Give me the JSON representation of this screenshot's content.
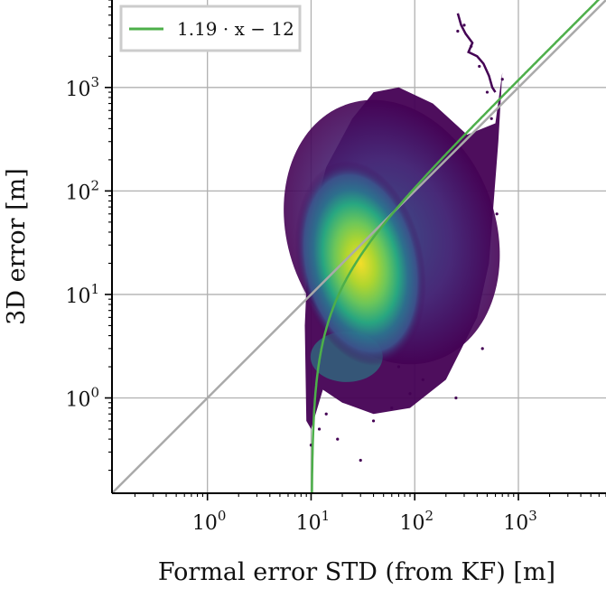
{
  "chart_data": {
    "type": "scatter",
    "xlabel": "Formal error STD (from KF) [m]",
    "ylabel": "3D error [m]",
    "xscale": "log",
    "yscale": "log",
    "xlim": [
      0.12,
      7000
    ],
    "ylim": [
      0.12,
      7000
    ],
    "grid": true,
    "legend_position": "top-left",
    "x_ticks": [
      {
        "base": "10",
        "exp": "0"
      },
      {
        "base": "10",
        "exp": "1"
      },
      {
        "base": "10",
        "exp": "2"
      },
      {
        "base": "10",
        "exp": "3"
      }
    ],
    "y_ticks": [
      {
        "base": "10",
        "exp": "0"
      },
      {
        "base": "10",
        "exp": "1"
      },
      {
        "base": "10",
        "exp": "2"
      },
      {
        "base": "10",
        "exp": "3"
      }
    ],
    "colormap": "viridis",
    "colors": {
      "fit_line": "#4daf4a",
      "identity_line": "#aaaaaa",
      "density_low": "#440154",
      "density_mid": "#21918c",
      "density_high": "#fde725"
    },
    "series": [
      {
        "name": "1.19 · x − 12",
        "kind": "line",
        "equation": {
          "slope": 1.19,
          "intercept": -12
        }
      },
      {
        "kind": "reference-line",
        "equation": {
          "slope": 1,
          "intercept": 0
        }
      },
      {
        "kind": "density-scatter",
        "description_points": [
          {
            "x": 30,
            "y": 20,
            "density": "high"
          },
          {
            "x": 20,
            "y": 10,
            "density": "medium"
          },
          {
            "x": 60,
            "y": 60,
            "density": "medium"
          },
          {
            "x": 12,
            "y": 2,
            "density": "low-teal"
          },
          {
            "x": 200,
            "y": 100,
            "density": "low"
          },
          {
            "x": 500,
            "y": 800,
            "density": "low"
          },
          {
            "x": 300,
            "y": 3000,
            "density": "low"
          }
        ]
      }
    ]
  }
}
